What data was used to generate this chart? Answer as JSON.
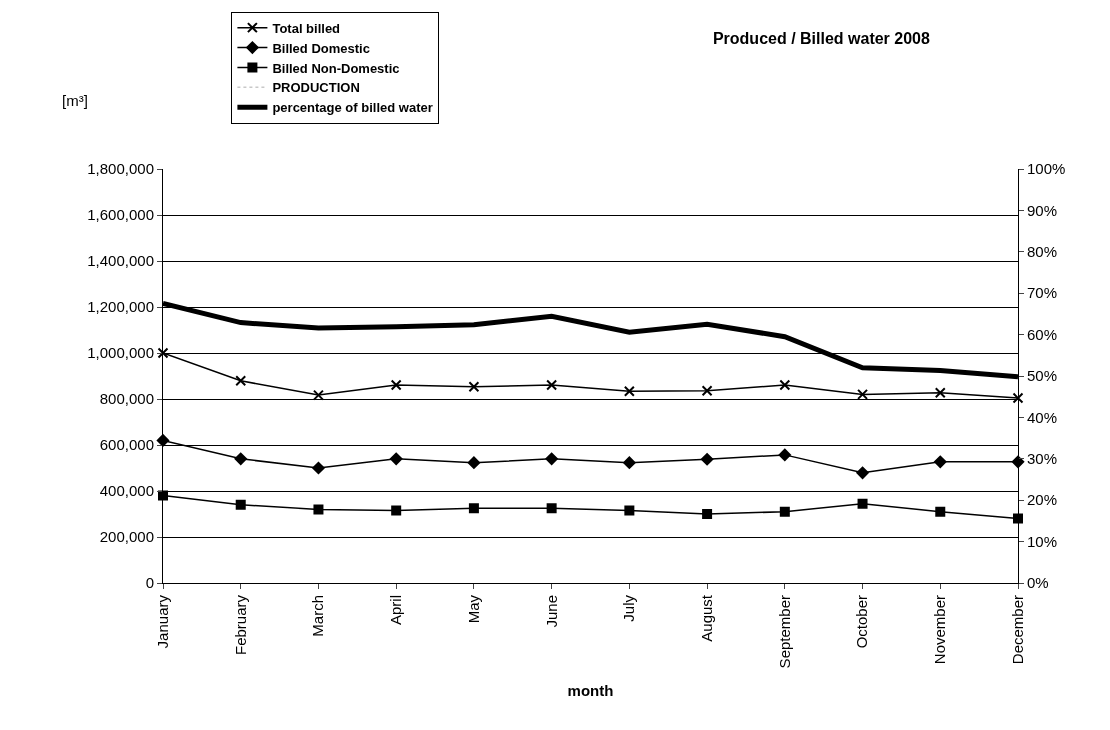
{
  "chart_data": {
    "type": "line",
    "title": "Produced / Billed water 2008",
    "xlabel": "month",
    "ylabel": "[m³]",
    "categories": [
      "January",
      "February",
      "March",
      "April",
      "May",
      "June",
      "July",
      "August",
      "September",
      "October",
      "November",
      "December"
    ],
    "series": [
      {
        "name": "Total billed",
        "color": "#000000",
        "marker": "cross",
        "values": [
          1000000,
          879000,
          817000,
          861000,
          853000,
          861000,
          834000,
          836000,
          861000,
          820000,
          827000,
          804000
        ]
      },
      {
        "name": "Billed Domestic",
        "color": "#000000",
        "marker": "diamond",
        "values": [
          620000,
          540000,
          500000,
          540000,
          523000,
          540000,
          523000,
          538000,
          557000,
          479000,
          527000,
          527000
        ]
      },
      {
        "name": "Billed Non-Domestic",
        "color": "#000000",
        "marker": "square",
        "values": [
          380000,
          340000,
          320000,
          315000,
          325000,
          325000,
          315000,
          300000,
          310000,
          345000,
          310000,
          280000
        ]
      },
      {
        "name": "PRODUCTION",
        "color": "#c8c8c8",
        "marker": "none",
        "line_style": "dotted",
        "values": [
          null,
          null,
          null,
          null,
          null,
          null,
          null,
          null,
          null,
          null,
          null,
          null
        ]
      },
      {
        "name": "percentage of billed water",
        "color": "#000000",
        "marker": "none",
        "axis": "y2",
        "values": [
          67.5,
          62.9,
          61.6,
          61.9,
          62.4,
          64.4,
          60.6,
          62.5,
          59.5,
          52.0,
          51.3,
          49.8
        ]
      }
    ],
    "ylim": [
      0,
      1800000
    ],
    "yticks": [
      {
        "value": 0,
        "label": "0"
      },
      {
        "value": 200000,
        "label": "200,000"
      },
      {
        "value": 400000,
        "label": "400,000"
      },
      {
        "value": 600000,
        "label": "600,000"
      },
      {
        "value": 800000,
        "label": "800,000"
      },
      {
        "value": 1000000,
        "label": "1,000,000"
      },
      {
        "value": 1200000,
        "label": "1,200,000"
      },
      {
        "value": 1400000,
        "label": "1,400,000"
      },
      {
        "value": 1600000,
        "label": "1,600,000"
      },
      {
        "value": 1800000,
        "label": "1,800,000"
      }
    ],
    "y2lim": [
      0,
      100
    ],
    "y2ticks": [
      {
        "value": 0,
        "label": "0%"
      },
      {
        "value": 10,
        "label": "10%"
      },
      {
        "value": 20,
        "label": "20%"
      },
      {
        "value": 30,
        "label": "30%"
      },
      {
        "value": 40,
        "label": "40%"
      },
      {
        "value": 50,
        "label": "50%"
      },
      {
        "value": 60,
        "label": "60%"
      },
      {
        "value": 70,
        "label": "70%"
      },
      {
        "value": 80,
        "label": "80%"
      },
      {
        "value": 90,
        "label": "90%"
      },
      {
        "value": 100,
        "label": "100%"
      }
    ],
    "grid": "y",
    "legend": "top left",
    "line_style": "solid"
  }
}
